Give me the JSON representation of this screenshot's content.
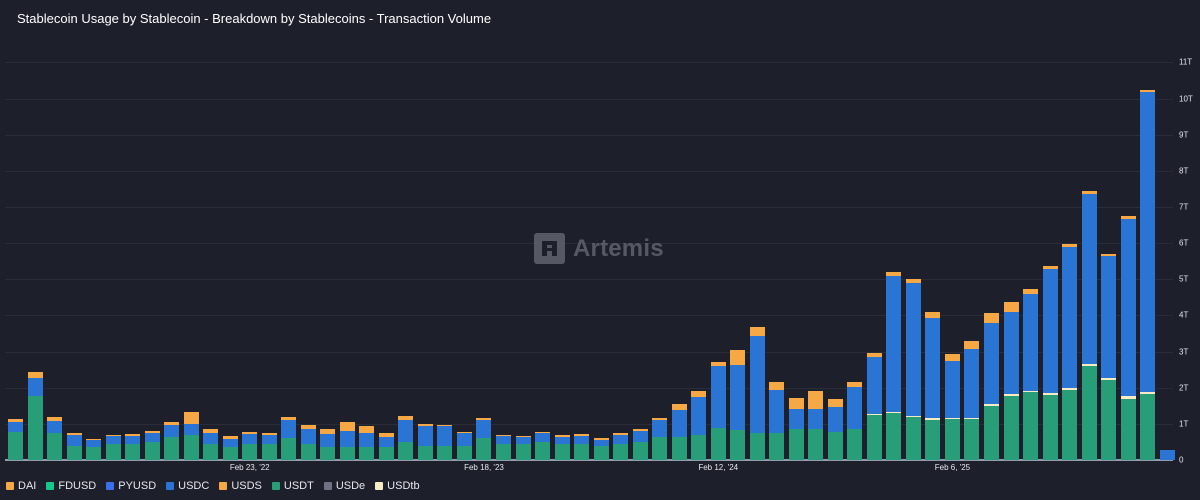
{
  "title": "Stablecoin Usage by Stablecoin - Breakdown by Stablecoins - Transaction Volume",
  "watermark": "Artemis",
  "colors": {
    "DAI": "#f5a843",
    "FDUSD": "#12c98a",
    "PYUSD": "#3c6ff0",
    "USDC": "#2a74d4",
    "USDS": "#f5a843",
    "USDT": "#279e78",
    "USDe": "#6f7185",
    "USDtb": "#f6ecc4",
    "background": "#1d1f2b",
    "grid": "#2a2c38"
  },
  "legend": [
    {
      "label": "DAI",
      "color": "#f5a843"
    },
    {
      "label": "FDUSD",
      "color": "#12c98a"
    },
    {
      "label": "PYUSD",
      "color": "#3c6ff0"
    },
    {
      "label": "USDC",
      "color": "#2a74d4"
    },
    {
      "label": "USDS",
      "color": "#f5a843"
    },
    {
      "label": "USDT",
      "color": "#279e78"
    },
    {
      "label": "USDe",
      "color": "#6f7185"
    },
    {
      "label": "USDtb",
      "color": "#f6ecc4"
    }
  ],
  "chart_data": {
    "type": "bar",
    "stacked": true,
    "title": "Stablecoin Usage by Stablecoin - Breakdown by Stablecoins - Transaction Volume",
    "xlabel": "",
    "ylabel": "",
    "ylim": [
      0,
      11
    ],
    "y_unit": "T",
    "y_ticks": [
      "0",
      "1T",
      "2T",
      "3T",
      "4T",
      "5T",
      "6T",
      "7T",
      "8T",
      "9T",
      "10T",
      "11T"
    ],
    "x_tick_labels": [
      {
        "label": "Feb 23, '22",
        "bar_index": 12
      },
      {
        "label": "Feb 18, '23",
        "bar_index": 24
      },
      {
        "label": "Feb 12, '24",
        "bar_index": 36
      },
      {
        "label": "Feb 6, '25",
        "bar_index": 48
      }
    ],
    "grid": true,
    "legend_position": "bottom",
    "bar_count": 60,
    "series": [
      {
        "name": "USDT",
        "values": [
          0.78,
          1.78,
          0.75,
          0.4,
          0.35,
          0.45,
          0.45,
          0.5,
          0.65,
          0.7,
          0.45,
          0.35,
          0.45,
          0.45,
          0.6,
          0.45,
          0.35,
          0.35,
          0.35,
          0.35,
          0.5,
          0.4,
          0.4,
          0.4,
          0.6,
          0.45,
          0.45,
          0.5,
          0.45,
          0.45,
          0.38,
          0.45,
          0.5,
          0.65,
          0.65,
          0.7,
          0.88,
          0.83,
          0.75,
          0.75,
          0.85,
          0.85,
          0.78,
          0.87,
          1.25,
          1.3,
          1.2,
          1.12,
          1.13,
          1.13,
          1.5,
          1.77,
          1.87,
          1.81,
          1.95,
          2.6,
          2.22,
          1.7,
          1.83,
          0.0
        ]
      },
      {
        "name": "USDtb",
        "values": [
          0,
          0,
          0,
          0,
          0,
          0,
          0,
          0,
          0,
          0,
          0,
          0,
          0,
          0,
          0,
          0,
          0,
          0,
          0,
          0,
          0,
          0,
          0,
          0,
          0,
          0,
          0,
          0,
          0,
          0,
          0,
          0,
          0,
          0,
          0,
          0,
          0,
          0,
          0,
          0,
          0,
          0,
          0,
          0,
          0.02,
          0.03,
          0.03,
          0.03,
          0.03,
          0.03,
          0.04,
          0.05,
          0.05,
          0.05,
          0.05,
          0.06,
          0.06,
          0.06,
          0.06,
          0
        ]
      },
      {
        "name": "USDC",
        "values": [
          0.27,
          0.5,
          0.34,
          0.28,
          0.2,
          0.21,
          0.22,
          0.25,
          0.32,
          0.3,
          0.3,
          0.24,
          0.28,
          0.25,
          0.52,
          0.42,
          0.37,
          0.45,
          0.39,
          0.3,
          0.6,
          0.55,
          0.55,
          0.35,
          0.5,
          0.22,
          0.2,
          0.25,
          0.2,
          0.22,
          0.18,
          0.25,
          0.3,
          0.45,
          0.72,
          1.03,
          1.73,
          1.81,
          2.68,
          1.18,
          0.56,
          0.56,
          0.7,
          1.15,
          1.58,
          3.77,
          3.67,
          2.79,
          1.57,
          1.9,
          2.26,
          2.28,
          2.68,
          3.42,
          3.89,
          4.71,
          3.35,
          4.92,
          8.3,
          0.28
        ]
      },
      {
        "name": "DAI/USDS",
        "values": [
          0.08,
          0.15,
          0.1,
          0.07,
          0.03,
          0.04,
          0.05,
          0.05,
          0.08,
          0.32,
          0.11,
          0.07,
          0.04,
          0.05,
          0.07,
          0.1,
          0.14,
          0.25,
          0.2,
          0.1,
          0.12,
          0.05,
          0.02,
          0.02,
          0.06,
          0.02,
          0.01,
          0.02,
          0.04,
          0.05,
          0.04,
          0.05,
          0.06,
          0.06,
          0.18,
          0.18,
          0.1,
          0.4,
          0.24,
          0.22,
          0.3,
          0.5,
          0.21,
          0.13,
          0.11,
          0.09,
          0.1,
          0.15,
          0.2,
          0.23,
          0.26,
          0.26,
          0.12,
          0.08,
          0.08,
          0.06,
          0.06,
          0.06,
          0.06,
          0
        ]
      }
    ]
  }
}
